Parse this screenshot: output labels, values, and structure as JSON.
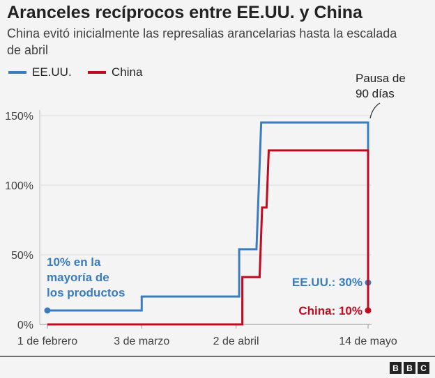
{
  "title": "Aranceles recíprocos entre EE.UU. y China",
  "subtitle": "China evitó inicialmente las represalias arancelarias hasta la escalada de abril",
  "annotations": {
    "pause_line1": "Pausa de",
    "pause_line2": "90 días",
    "us_note_line1": "10% en la",
    "us_note_line2": "mayoría de",
    "us_note_line3": "los productos",
    "us_end": "EE.UU.: 30%",
    "china_end": "China: 10%"
  },
  "footer": {
    "logo": [
      "B",
      "B",
      "C"
    ]
  },
  "chart_data": {
    "type": "line",
    "title": "Aranceles recíprocos entre EE.UU. y China",
    "xlabel": "",
    "ylabel": "",
    "x_unit": "days since 1 de febrero",
    "xlim": [
      0,
      102
    ],
    "ylim": [
      0,
      150
    ],
    "yticks": [
      0,
      50,
      100,
      150
    ],
    "ytick_labels": [
      "0%",
      "50%",
      "100%",
      "150%"
    ],
    "xticks": [
      0,
      30,
      60,
      102
    ],
    "xtick_labels": [
      "1 de febrero",
      "3 de marzo",
      "2 de abril",
      "14 de mayo"
    ],
    "grid": true,
    "legend": "top-left",
    "series": [
      {
        "name": "EE.UU.",
        "color": "#3a7cbf",
        "points": [
          [
            0,
            10
          ],
          [
            30,
            10
          ],
          [
            30,
            20
          ],
          [
            61,
            20
          ],
          [
            61,
            54
          ],
          [
            66.5,
            54
          ],
          [
            68,
            145
          ],
          [
            102,
            145
          ],
          [
            102,
            30
          ]
        ]
      },
      {
        "name": "China",
        "color": "#c10a1f",
        "points": [
          [
            0,
            0
          ],
          [
            62,
            0
          ],
          [
            62,
            34
          ],
          [
            67.5,
            34
          ],
          [
            68.3,
            84
          ],
          [
            69.7,
            84
          ],
          [
            70.4,
            125
          ],
          [
            102,
            125
          ],
          [
            102,
            10
          ]
        ]
      }
    ]
  }
}
